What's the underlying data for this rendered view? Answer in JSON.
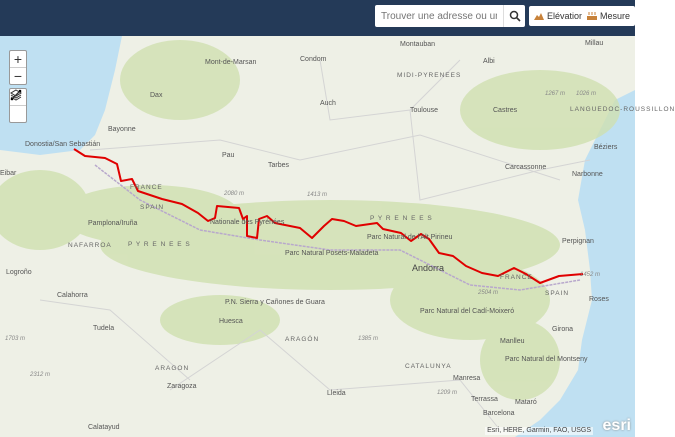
{
  "header": {
    "search_placeholder": "Trouver une adresse ou un lieu",
    "search_icon": "search-icon",
    "elevation_label": "Elévation",
    "measure_label": "Mesure"
  },
  "controls": {
    "zoom_in": "+",
    "zoom_out": "−"
  },
  "colors": {
    "header": "#243a58",
    "trail": "#e00000",
    "sea": "#bfe0f2",
    "land": "#eef0e6"
  },
  "map": {
    "places": [
      {
        "name": "Millau"
      },
      {
        "name": "Montauban"
      },
      {
        "name": "Condom"
      },
      {
        "name": "Mont-de-Marsan"
      },
      {
        "name": "Albi"
      },
      {
        "name": "MIDI-PYRENEES"
      },
      {
        "name": "Dax"
      },
      {
        "name": "Auch"
      },
      {
        "name": "Toulouse"
      },
      {
        "name": "Castres"
      },
      {
        "name": "LANGUEDOC-ROUSSILLON"
      },
      {
        "name": "Bayonne"
      },
      {
        "name": "Donostia/San Sebastián"
      },
      {
        "name": "Pau"
      },
      {
        "name": "Tarbes"
      },
      {
        "name": "Béziers"
      },
      {
        "name": "Carcassonne"
      },
      {
        "name": "Narbonne"
      },
      {
        "name": "Eibar"
      },
      {
        "name": "FRANCE"
      },
      {
        "name": "SPAIN"
      },
      {
        "name": "Pamplona/Iruña"
      },
      {
        "name": "NAFARROA"
      },
      {
        "name": "P Y R E N E E S"
      },
      {
        "name": "P Y R E N E E S"
      },
      {
        "name": "Perpignan"
      },
      {
        "name": "Andorra"
      },
      {
        "name": "Logroño"
      },
      {
        "name": "Calahorra"
      },
      {
        "name": "FRANCE"
      },
      {
        "name": "SPAIN"
      },
      {
        "name": "Roses"
      },
      {
        "name": "Tudela"
      },
      {
        "name": "Huesca"
      },
      {
        "name": "ARAGÓN"
      },
      {
        "name": "Manlleu"
      },
      {
        "name": "Girona"
      },
      {
        "name": "ARAGON"
      },
      {
        "name": "CATALUNYA"
      },
      {
        "name": "Zaragoza"
      },
      {
        "name": "Manresa"
      },
      {
        "name": "Lleida"
      },
      {
        "name": "Terrassa"
      },
      {
        "name": "Mataró"
      },
      {
        "name": "Barcelona"
      },
      {
        "name": "Calatayud"
      },
      {
        "name": "Parc Natural Posets-Maladeta"
      },
      {
        "name": "Parc Natural de l'Alt Pirineu"
      },
      {
        "name": "P.N. Sierra y Cañones de Guara"
      },
      {
        "name": "Parc Natural del Cadí-Moixeró"
      },
      {
        "name": "Parc Natural del Montseny"
      },
      {
        "name": "Nationale des Pyrénées"
      },
      {
        "name": "1267 m"
      },
      {
        "name": "1026 m"
      },
      {
        "name": "2080 m"
      },
      {
        "name": "1413 m"
      },
      {
        "name": "1385 m"
      },
      {
        "name": "1703 m"
      },
      {
        "name": "2312 m"
      },
      {
        "name": "2504 m"
      },
      {
        "name": "1209 m"
      },
      {
        "name": "1452 m"
      }
    ],
    "attribution": "Esri, HERE, Garmin, FAO, USGS",
    "logo": "esri"
  }
}
